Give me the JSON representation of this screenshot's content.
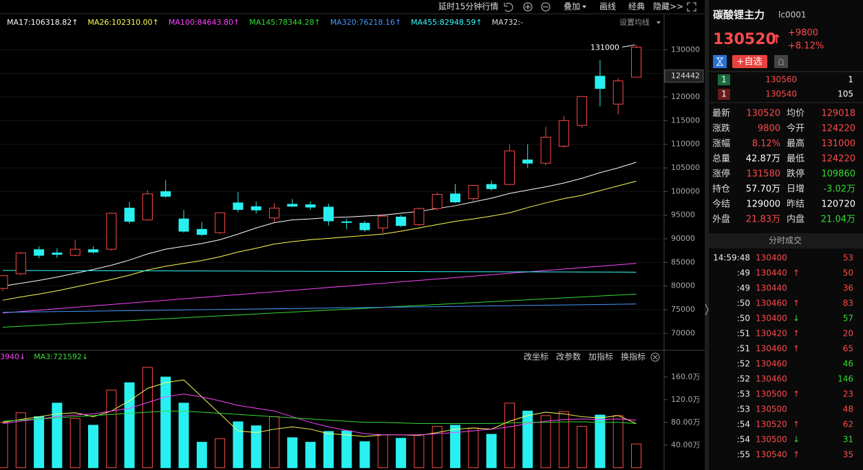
{
  "toolbar": {
    "delay": "延时15分钟行情",
    "overlay": "叠加",
    "draw": "画线",
    "classic": "经典",
    "hide": "隐藏>>"
  },
  "chart_data": [
    {
      "type": "candlestick",
      "ma_setting": "设置均线",
      "high_label": 131000,
      "price_marker": 124442,
      "up_color": "#ff4a4a",
      "down_color": "#29f0f0",
      "ylim": [
        67000,
        134700
      ],
      "yticks": [
        70000,
        75000,
        80000,
        85000,
        90000,
        95000,
        100000,
        105000,
        110000,
        115000,
        120000,
        125000,
        130000
      ],
      "open": [
        79500,
        82600,
        87700,
        87000,
        86500,
        87700,
        87800,
        96500,
        94000,
        100000,
        94200,
        92000,
        91300,
        97600,
        96800,
        94400,
        97300,
        97200,
        96700,
        93600,
        93300,
        92300,
        94600,
        93000,
        96400,
        99500,
        98500,
        101500,
        101500,
        106700,
        106000,
        109600,
        114000,
        124400,
        118500,
        124200
      ],
      "high": [
        82300,
        87200,
        88400,
        88000,
        89800,
        88400,
        95500,
        97800,
        100300,
        102400,
        96100,
        93500,
        95600,
        99900,
        97900,
        97600,
        98400,
        97900,
        97400,
        94200,
        93800,
        95200,
        95000,
        96600,
        99800,
        101600,
        101300,
        102300,
        110000,
        110000,
        113700,
        116000,
        120000,
        127800,
        124000,
        131000
      ],
      "low": [
        79000,
        82300,
        85900,
        86000,
        86300,
        86900,
        87500,
        93200,
        93800,
        98700,
        91300,
        90600,
        91000,
        95600,
        95300,
        93500,
        96700,
        96100,
        92800,
        92000,
        91500,
        91200,
        92500,
        92700,
        96000,
        97600,
        98000,
        100200,
        101300,
        105000,
        105600,
        109300,
        113500,
        118000,
        116300,
        124200
      ],
      "close": [
        82200,
        87000,
        86500,
        86700,
        87800,
        87200,
        95400,
        93700,
        99500,
        99000,
        91600,
        90900,
        95500,
        96200,
        96100,
        96500,
        96900,
        96700,
        93800,
        93500,
        91900,
        94800,
        92800,
        96400,
        99400,
        97800,
        101300,
        100600,
        108600,
        106000,
        111500,
        115000,
        120100,
        121800,
        123400,
        130520
      ],
      "series": [
        {
          "label": "MA17:106318.82↑",
          "color": "#ffffff",
          "values": [
            80000,
            80600,
            81200,
            81900,
            82700,
            83500,
            84400,
            85500,
            86800,
            87800,
            88400,
            89000,
            89800,
            91000,
            92300,
            93400,
            94000,
            94200,
            94500,
            94600,
            94800,
            95000,
            95400,
            95800,
            96400,
            97000,
            97800,
            98600,
            99600,
            100300,
            101000,
            101800,
            102800,
            104000,
            105000,
            106200
          ]
        },
        {
          "label": "MA26:102310.00↑",
          "color": "#ffff55",
          "values": [
            77000,
            77700,
            78300,
            79000,
            79800,
            80600,
            81400,
            82300,
            83400,
            84200,
            84800,
            85400,
            86200,
            87200,
            88000,
            88900,
            89400,
            89800,
            90100,
            90400,
            90700,
            91000,
            91600,
            92300,
            93000,
            93700,
            94200,
            94800,
            95500,
            96600,
            97600,
            98500,
            99200,
            100200,
            101200,
            102200
          ]
        },
        {
          "label": "MA100:84643.80↑",
          "color": "#ff44ff",
          "values": [
            74300,
            74600,
            74900,
            75200,
            75500,
            75800,
            76100,
            76400,
            76700,
            77000,
            77300,
            77600,
            77900,
            78200,
            78500,
            78800,
            79100,
            79400,
            79700,
            80000,
            80300,
            80600,
            80900,
            81200,
            81500,
            81800,
            82100,
            82400,
            82700,
            83000,
            83300,
            83600,
            83900,
            84200,
            84500,
            84800
          ]
        },
        {
          "label": "MA145:78344.28↑",
          "color": "#33dd33",
          "values": [
            71300,
            71500,
            71700,
            71900,
            72100,
            72300,
            72500,
            72700,
            72900,
            73100,
            73300,
            73500,
            73700,
            73900,
            74100,
            74300,
            74500,
            74700,
            74900,
            75100,
            75300,
            75500,
            75700,
            75900,
            76100,
            76300,
            76500,
            76700,
            76900,
            77100,
            77300,
            77500,
            77700,
            77900,
            78100,
            78300
          ]
        },
        {
          "label": "MA320:76218.16↑",
          "color": "#4499ff",
          "values": [
            74450,
            74500,
            74550,
            74600,
            74650,
            74700,
            74750,
            74800,
            74850,
            74900,
            74950,
            75000,
            75050,
            75100,
            75150,
            75200,
            75250,
            75300,
            75350,
            75400,
            75450,
            75500,
            75550,
            75600,
            75650,
            75700,
            75750,
            75800,
            75850,
            75900,
            75950,
            76000,
            76050,
            76100,
            76150,
            76200
          ]
        },
        {
          "label": "MA455:82948.59↑",
          "color": "#33ffff",
          "values": [
            83300,
            83290,
            83280,
            83270,
            83260,
            83250,
            83240,
            83230,
            83220,
            83210,
            83200,
            83190,
            83180,
            83170,
            83160,
            83150,
            83140,
            83130,
            83120,
            83110,
            83100,
            83090,
            83080,
            83070,
            83060,
            83050,
            83040,
            83030,
            83020,
            83010,
            83000,
            82990,
            82980,
            82970,
            82960,
            82950
          ]
        }
      ],
      "extra_legend": "MA732:-"
    },
    {
      "type": "volume",
      "ylim": [
        -4,
        206
      ],
      "yticks": [
        {
          "value": 40,
          "label": "40.00万"
        },
        {
          "value": 80,
          "label": "80.00万"
        },
        {
          "value": 120,
          "label": "120.0万"
        },
        {
          "value": 160,
          "label": "160.0万"
        }
      ],
      "values": [
        80,
        97,
        90,
        114,
        87,
        75,
        137,
        150,
        177,
        160,
        114,
        45,
        51,
        81,
        74,
        90,
        53,
        45,
        64,
        65,
        46,
        58,
        52,
        58,
        73,
        75,
        70,
        59,
        114,
        100,
        92,
        99,
        73,
        93,
        92,
        42
      ],
      "buttons": [
        "改坐标",
        "改参数",
        "加指标",
        "换指标"
      ],
      "series": [
        {
          "color": "#ffff55",
          "values": [
            80,
            85,
            90,
            95,
            97,
            90,
            100,
            118,
            140,
            150,
            155,
            125,
            95,
            65,
            62,
            68,
            72,
            68,
            60,
            58,
            55,
            58,
            58,
            57,
            62,
            68,
            70,
            68,
            82,
            92,
            98,
            95,
            90,
            88,
            92,
            78
          ]
        },
        {
          "label": "3940↓",
          "color": "#ff44ff",
          "values": [
            78,
            82,
            86,
            90,
            93,
            95,
            100,
            105,
            115,
            125,
            130,
            125,
            118,
            110,
            105,
            100,
            90,
            80,
            72,
            66,
            60,
            58,
            58,
            58,
            60,
            62,
            65,
            68,
            72,
            78,
            82,
            85,
            86,
            85,
            86,
            84
          ]
        },
        {
          "label": "MA3:721592↓",
          "color": "#33dd33",
          "values": [
            82,
            84,
            86,
            88,
            90,
            92,
            94,
            96,
            98,
            100,
            100,
            98,
            96,
            94,
            92,
            90,
            88,
            86,
            84,
            82,
            80,
            80,
            79,
            78,
            78,
            78,
            78,
            78,
            79,
            80,
            80,
            81,
            81,
            80,
            80,
            78
          ]
        }
      ]
    }
  ],
  "quote": {
    "name": "碳酸锂主力",
    "code": "lc0001",
    "price": 130520,
    "arrow": "↑",
    "change": "+9800",
    "change_pct": "+8.12%",
    "watch": "+自选",
    "book": [
      [
        "1",
        130560,
        1
      ],
      [
        "1",
        130540,
        105
      ]
    ],
    "stats": [
      [
        "最新",
        130520,
        "均价",
        129018
      ],
      [
        "涨跌",
        9800,
        "今开",
        124220
      ],
      [
        "涨幅",
        "8.12%",
        "最高",
        131000
      ],
      [
        "总量",
        "42.87万",
        "最低",
        124220
      ],
      [
        "涨停",
        131580,
        "跌停",
        109860
      ],
      [
        "持仓",
        "57.70万",
        "日增",
        "-3.02万"
      ],
      [
        "今结",
        129000,
        "昨结",
        120720
      ],
      [
        "外盘",
        "21.83万",
        "内盘",
        "21.04万"
      ]
    ],
    "trades_title": "分时成交",
    "trades": [
      {
        "time": "14:59:48",
        "price": 130400,
        "vol": 53,
        "color": "#ff4a4a"
      },
      {
        "time": ":49",
        "price": 130440,
        "dir": "↑",
        "vol": 50,
        "color": "#ff4a4a"
      },
      {
        "time": ":49",
        "price": 130440,
        "vol": 36,
        "color": "#ff4a4a"
      },
      {
        "time": ":50",
        "price": 130460,
        "dir": "↑",
        "vol": 83,
        "color": "#ff4a4a"
      },
      {
        "time": ":50",
        "price": 130400,
        "dir": "↓",
        "vol": 57,
        "color": "#33dd33"
      },
      {
        "time": ":51",
        "price": 130420,
        "dir": "↑",
        "vol": 20,
        "color": "#ff4a4a"
      },
      {
        "time": ":51",
        "price": 130460,
        "dir": "↑",
        "vol": 65,
        "color": "#ff4a4a"
      },
      {
        "time": ":52",
        "price": 130460,
        "vol": 46,
        "color": "#33dd33"
      },
      {
        "time": ":52",
        "price": 130460,
        "vol": 146,
        "color": "#33dd33"
      },
      {
        "time": ":53",
        "price": 130500,
        "dir": "↑",
        "vol": 23,
        "color": "#ff4a4a"
      },
      {
        "time": ":53",
        "price": 130500,
        "vol": 48,
        "color": "#ff4a4a"
      },
      {
        "time": ":54",
        "price": 130520,
        "dir": "↑",
        "vol": 62,
        "color": "#ff4a4a"
      },
      {
        "time": ":54",
        "price": 130500,
        "dir": "↓",
        "vol": 31,
        "color": "#33dd33"
      },
      {
        "time": ":55",
        "price": 130540,
        "dir": "↑",
        "vol": 35,
        "color": "#ff4a4a"
      }
    ]
  }
}
